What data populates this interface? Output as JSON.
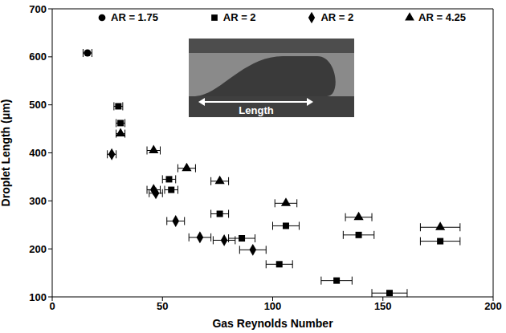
{
  "chart_data": {
    "type": "scatter",
    "xlabel": "Gas Reynolds Number",
    "ylabel": "Droplet Length (μm)",
    "xlim": [
      0,
      200
    ],
    "xticks": [
      0,
      50,
      100,
      150,
      200
    ],
    "ylim": [
      100,
      700
    ],
    "yticks": [
      100,
      200,
      300,
      400,
      500,
      600,
      700
    ],
    "grid": false,
    "legend": "top",
    "annotations": [
      "Length"
    ],
    "series": [
      {
        "name": "AR = 1.75",
        "marker": "circle",
        "color": "#000000",
        "x": [
          16
        ],
        "values": [
          608
        ],
        "x_error": [
          2
        ]
      },
      {
        "name": "AR = 2",
        "marker": "square",
        "color": "#000000",
        "x": [
          30,
          31,
          53,
          54,
          76,
          86,
          103,
          106,
          129,
          139,
          153,
          176
        ],
        "values": [
          497,
          462,
          345,
          323,
          273,
          222,
          168,
          248,
          134,
          229,
          108,
          216
        ],
        "x_error": [
          2,
          2,
          3,
          3,
          4,
          6,
          6,
          6,
          7,
          7,
          8,
          9
        ]
      },
      {
        "name": "AR = 2",
        "marker": "diamond",
        "color": "#000000",
        "x": [
          27,
          46,
          47,
          56,
          67,
          78,
          91
        ],
        "values": [
          397,
          323,
          316,
          258,
          224,
          218,
          198
        ],
        "x_error": [
          2,
          3,
          3,
          4,
          5,
          5,
          6
        ]
      },
      {
        "name": "AR = 4.25",
        "marker": "triangle",
        "color": "#000000",
        "x": [
          31,
          46,
          61,
          76,
          106,
          139,
          176
        ],
        "values": [
          440,
          405,
          368,
          341,
          295,
          266,
          245
        ],
        "x_error": [
          2,
          3,
          4,
          4,
          5,
          6,
          9
        ]
      }
    ]
  }
}
